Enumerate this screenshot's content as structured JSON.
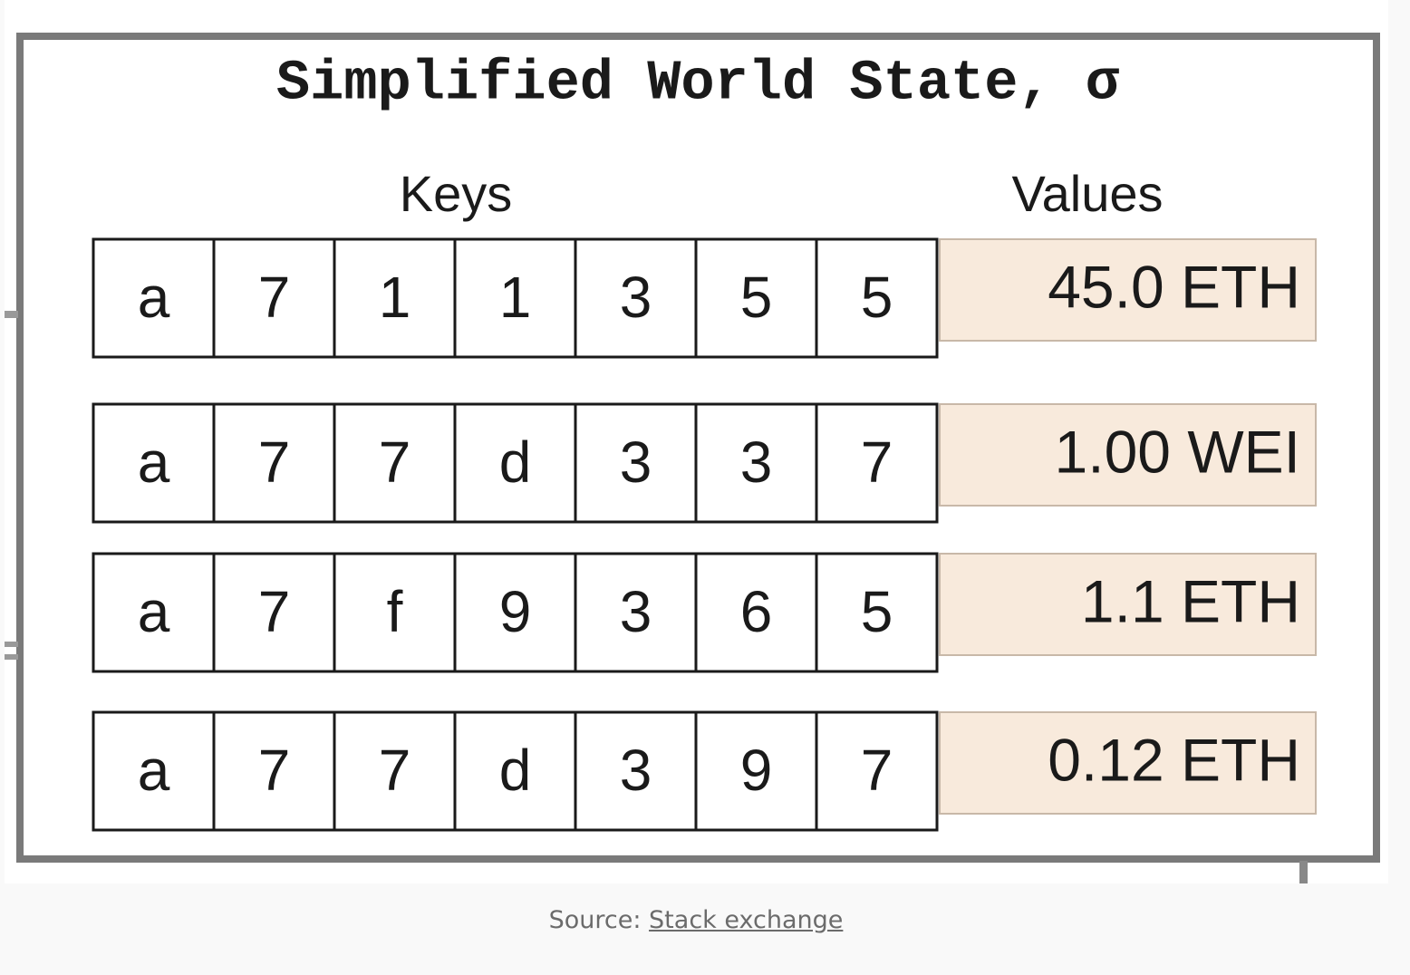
{
  "diagram": {
    "title": "Simplified World State, σ",
    "keys_label": "Keys",
    "values_label": "Values",
    "rows": [
      {
        "keys": [
          "a",
          "7",
          "1",
          "1",
          "3",
          "5",
          "5"
        ],
        "value": "45.0 ETH"
      },
      {
        "keys": [
          "a",
          "7",
          "7",
          "d",
          "3",
          "3",
          "7"
        ],
        "value": "1.00 WEI"
      },
      {
        "keys": [
          "a",
          "7",
          "f",
          "9",
          "3",
          "6",
          "5"
        ],
        "value": "1.1 ETH"
      },
      {
        "keys": [
          "a",
          "7",
          "7",
          "d",
          "3",
          "9",
          "7"
        ],
        "value": "0.12 ETH"
      }
    ]
  },
  "caption": {
    "prefix": "Source:",
    "link": "Stack exchange"
  }
}
